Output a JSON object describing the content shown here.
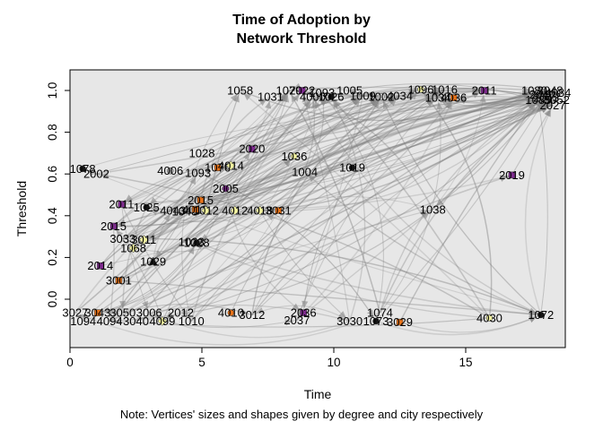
{
  "title": {
    "line1": "Time of Adoption by",
    "line2": "Network Threshold"
  },
  "axes": {
    "x_label": "Time",
    "y_label": "Threshold",
    "note": "Note: Vertices' sizes and shapes given by degree and city respectively"
  },
  "chart_data": {
    "type": "scatter",
    "title": "Time of Adoption by Network Threshold",
    "xlabel": "Time",
    "ylabel": "Threshold",
    "note": "Note: Vertices' sizes and shapes given by degree and city respectively",
    "x_ticks": [
      0,
      5,
      10,
      15
    ],
    "y_ticks": [
      0.0,
      0.2,
      0.4,
      0.6,
      0.8,
      1.0
    ],
    "xlim": [
      0,
      18.8
    ],
    "ylim": [
      -0.23,
      1.1
    ],
    "grid": false,
    "legend": "none",
    "plot_bg": "#e7e7e7",
    "border_color": "#000000",
    "edge_color": "#7d7d7d",
    "marker_palette": {
      "o": "#e8731a",
      "y": "#f2f2a0",
      "p": "#7e2b8e",
      "k": "#141414",
      "g": "#a9a9a9",
      "w": "#e0e0e0"
    },
    "nodes": [
      [
        "1058",
        6.45,
        1.0,
        null,
        null
      ],
      [
        "1031",
        7.6,
        0.97,
        null,
        null
      ],
      [
        "1079",
        8.3,
        1.0,
        null,
        null
      ],
      [
        "2022",
        8.8,
        1.0,
        "p",
        "s"
      ],
      [
        "4000",
        9.2,
        0.97,
        null,
        null
      ],
      [
        "1093",
        9.55,
        0.99,
        null,
        null
      ],
      [
        "1026",
        9.9,
        0.97,
        "k",
        "c"
      ],
      [
        "1005",
        10.6,
        1.0,
        null,
        null
      ],
      [
        "1009",
        11.1,
        0.975,
        null,
        null
      ],
      [
        "1002",
        11.8,
        0.97,
        "w",
        "c"
      ],
      [
        "4034",
        12.5,
        0.975,
        null,
        null
      ],
      [
        "1096",
        13.3,
        1.005,
        "y",
        "c"
      ],
      [
        "1034",
        13.95,
        0.965,
        null,
        null
      ],
      [
        "4036",
        14.55,
        0.965,
        "o",
        "s"
      ],
      [
        "1016",
        14.2,
        1.005,
        null,
        null
      ],
      [
        "2011",
        15.7,
        1.0,
        "p",
        "s"
      ],
      [
        "1080",
        17.6,
        1.0,
        null,
        null
      ],
      [
        "2040",
        17.9,
        0.98,
        null,
        null
      ],
      [
        "3048",
        18.2,
        1.0,
        null,
        null
      ],
      [
        "4084",
        18.5,
        0.99,
        null,
        null
      ],
      [
        "1085",
        17.75,
        0.955,
        null,
        null
      ],
      [
        "2043",
        18.05,
        0.965,
        null,
        null
      ],
      [
        "3052",
        18.45,
        0.955,
        null,
        null
      ],
      [
        "2027",
        18.3,
        0.93,
        null,
        null
      ],
      [
        "1028",
        5.0,
        0.7,
        null,
        null
      ],
      [
        "2020",
        6.9,
        0.72,
        "p",
        "s"
      ],
      [
        "1036",
        8.5,
        0.685,
        "y",
        "c"
      ],
      [
        "1078",
        0.48,
        0.625,
        "k",
        "c"
      ],
      [
        "2002",
        1.0,
        0.6,
        null,
        null
      ],
      [
        "4006",
        3.8,
        0.615,
        "g",
        "c"
      ],
      [
        "1093",
        4.85,
        0.605,
        null,
        null
      ],
      [
        "1076",
        5.6,
        0.63,
        "o",
        "s"
      ],
      [
        "4014",
        6.1,
        0.64,
        "y",
        "d"
      ],
      [
        "1004",
        8.9,
        0.61,
        null,
        null
      ],
      [
        "1019",
        10.7,
        0.63,
        "k",
        "c"
      ],
      [
        "2019",
        16.75,
        0.595,
        "p",
        "s"
      ],
      [
        "2005",
        5.9,
        0.53,
        "p",
        "c"
      ],
      [
        "2011",
        1.95,
        0.455,
        "p",
        "s"
      ],
      [
        "1025",
        2.9,
        0.44,
        "k",
        "c"
      ],
      [
        "4043",
        3.9,
        0.425,
        null,
        null
      ],
      [
        "1043",
        4.35,
        0.42,
        null,
        null
      ],
      [
        "4013",
        4.75,
        0.43,
        "o",
        "s"
      ],
      [
        "1012",
        5.15,
        0.425,
        "y",
        "d"
      ],
      [
        "2015",
        4.95,
        0.475,
        "o",
        "s"
      ],
      [
        "4012",
        6.25,
        0.425,
        "y",
        "d"
      ],
      [
        "4018",
        7.2,
        0.425,
        "y",
        "d"
      ],
      [
        "3031",
        7.9,
        0.425,
        "o",
        "s"
      ],
      [
        "1038",
        13.75,
        0.43,
        null,
        null
      ],
      [
        "2015",
        1.65,
        0.35,
        "p",
        "s"
      ],
      [
        "3033",
        2.0,
        0.29,
        null,
        null
      ],
      [
        "3011",
        2.8,
        0.285,
        "y",
        "d"
      ],
      [
        "1068",
        2.4,
        0.245,
        "y",
        "d"
      ],
      [
        "1023",
        4.6,
        0.275,
        null,
        null
      ],
      [
        "1028",
        4.8,
        0.27,
        "k",
        "c"
      ],
      [
        "2014",
        1.15,
        0.16,
        "p",
        "s"
      ],
      [
        "1029",
        3.15,
        0.18,
        "k",
        "t"
      ],
      [
        "3001",
        1.85,
        0.09,
        "o",
        "s"
      ],
      [
        "3027",
        0.2,
        -0.065,
        null,
        null
      ],
      [
        "1094",
        0.5,
        -0.105,
        null,
        null
      ],
      [
        "3043",
        1.05,
        -0.065,
        "o",
        "s"
      ],
      [
        "4094",
        1.5,
        -0.105,
        null,
        null
      ],
      [
        "3050",
        2.0,
        -0.065,
        null,
        null
      ],
      [
        "3040",
        2.5,
        -0.105,
        null,
        null
      ],
      [
        "3006",
        3.0,
        -0.065,
        null,
        null
      ],
      [
        "4099",
        3.5,
        -0.105,
        "y",
        "d"
      ],
      [
        "2012",
        4.2,
        -0.065,
        null,
        null
      ],
      [
        "1010",
        4.6,
        -0.105,
        null,
        null
      ],
      [
        "4010",
        6.1,
        -0.065,
        "o",
        "c"
      ],
      [
        "3012",
        6.9,
        -0.075,
        null,
        null
      ],
      [
        "2036",
        8.85,
        -0.065,
        "p",
        "s"
      ],
      [
        "2037",
        8.6,
        -0.1,
        null,
        null
      ],
      [
        "3030",
        10.6,
        -0.105,
        null,
        null
      ],
      [
        "1074",
        11.75,
        -0.065,
        null,
        null
      ],
      [
        "1073",
        11.6,
        -0.105,
        "k",
        "c"
      ],
      [
        "3029",
        12.5,
        -0.11,
        "o",
        "s"
      ],
      [
        "4030",
        15.9,
        -0.09,
        "y",
        "c"
      ],
      [
        "1072",
        17.85,
        -0.075,
        "k",
        "c"
      ]
    ]
  }
}
